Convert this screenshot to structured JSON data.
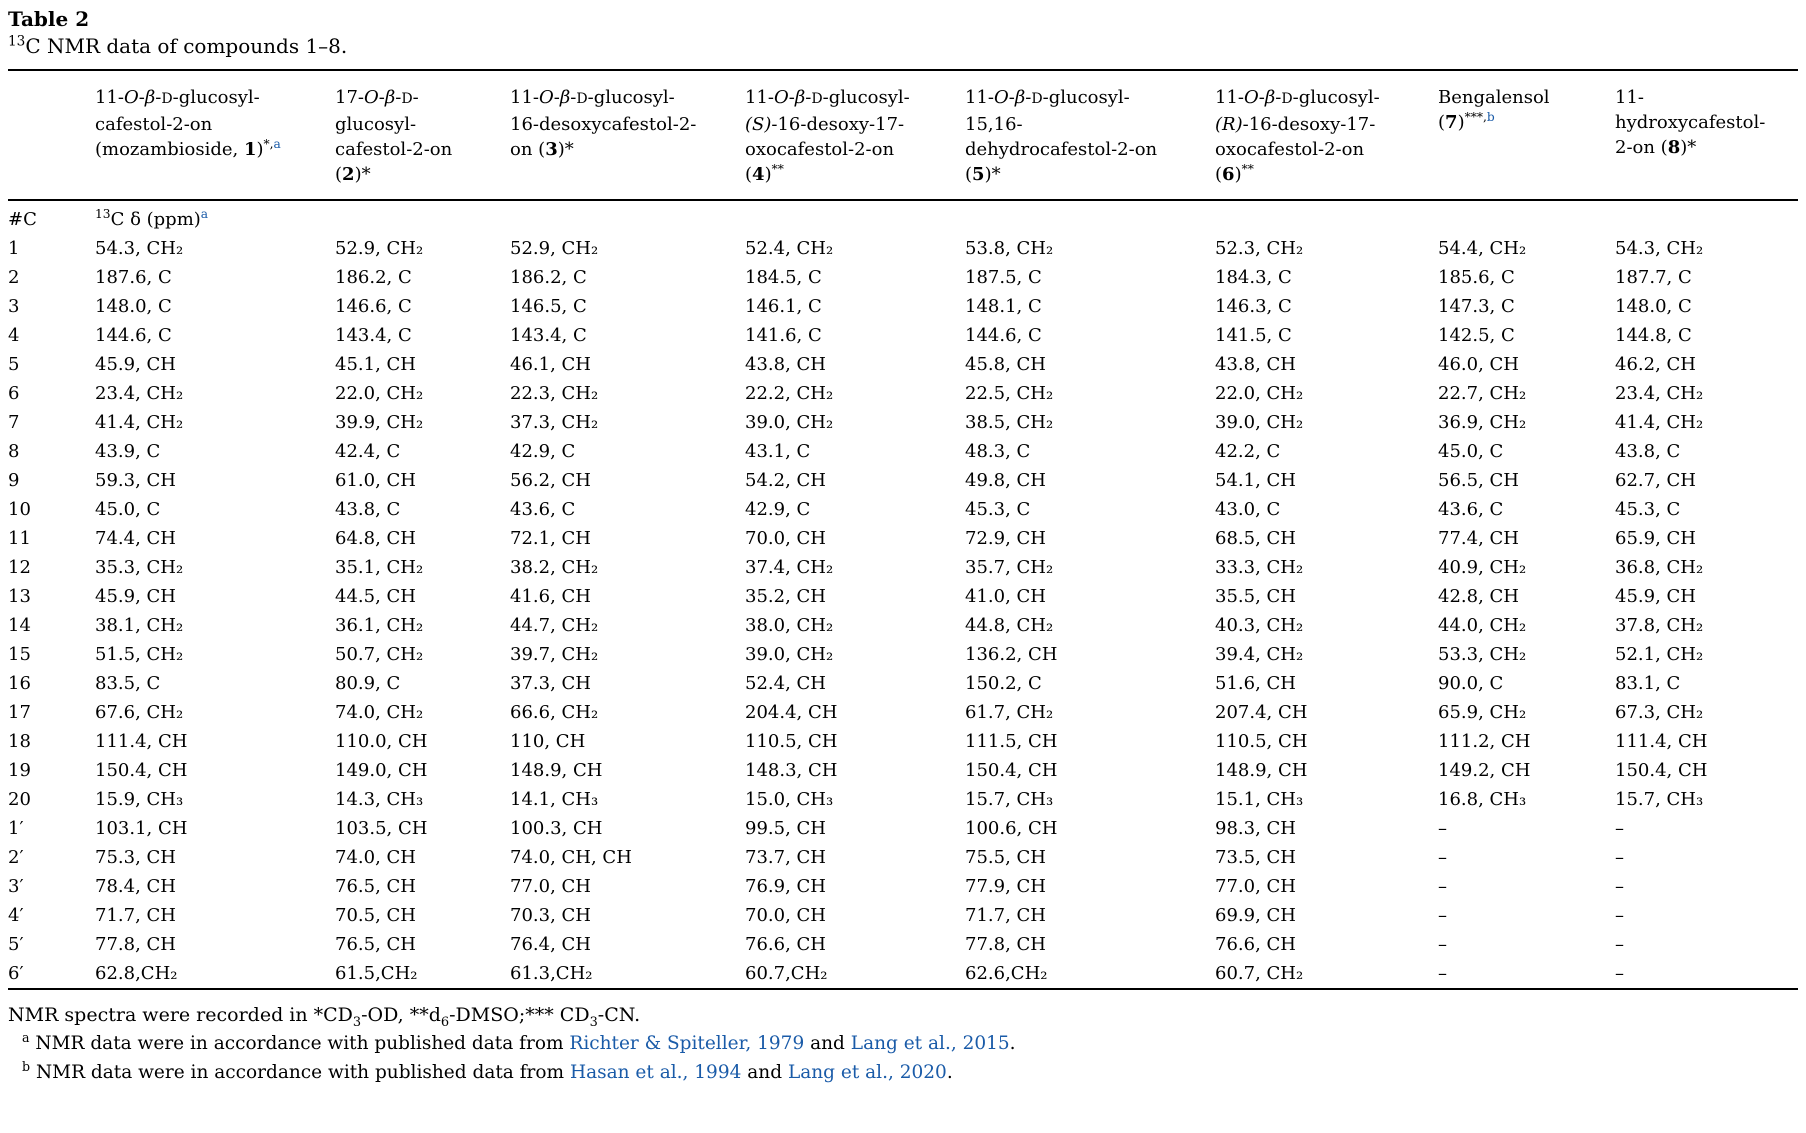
{
  "page": {
    "title": "Table 2",
    "caption": [
      {
        "t": "13",
        "sup": true
      },
      {
        "t": "C NMR data of compounds 1–8."
      }
    ]
  },
  "table": {
    "columns": [
      {
        "name": "compound-1",
        "header": [
          {
            "t": "11-"
          },
          {
            "t": "O",
            "i": true
          },
          {
            "t": "-"
          },
          {
            "t": "β",
            "i": true
          },
          {
            "t": "-"
          },
          {
            "t": "D",
            "sc": true
          },
          {
            "t": "-glucosyl-cafestol-2-on (mozambioside, "
          },
          {
            "t": "1",
            "b": true
          },
          {
            "t": ")"
          },
          {
            "t": "*,",
            "sup": true
          },
          {
            "t": "a",
            "sup": true,
            "link": true
          }
        ]
      },
      {
        "name": "compound-2",
        "header": [
          {
            "t": "17-"
          },
          {
            "t": "O",
            "i": true
          },
          {
            "t": "-"
          },
          {
            "t": "β",
            "i": true
          },
          {
            "t": "-"
          },
          {
            "t": "D",
            "sc": true
          },
          {
            "t": "-glucosyl-cafestol-2-on ("
          },
          {
            "t": "2",
            "b": true
          },
          {
            "t": ")*"
          }
        ]
      },
      {
        "name": "compound-3",
        "header": [
          {
            "t": "11-"
          },
          {
            "t": "O",
            "i": true
          },
          {
            "t": "-"
          },
          {
            "t": "β",
            "i": true
          },
          {
            "t": "-"
          },
          {
            "t": "D",
            "sc": true
          },
          {
            "t": "-glucosyl-16-desoxycafestol-2-on ("
          },
          {
            "t": "3",
            "b": true
          },
          {
            "t": ")*"
          }
        ]
      },
      {
        "name": "compound-4",
        "header": [
          {
            "t": "11-"
          },
          {
            "t": "O",
            "i": true
          },
          {
            "t": "-"
          },
          {
            "t": "β",
            "i": true
          },
          {
            "t": "-"
          },
          {
            "t": "D",
            "sc": true
          },
          {
            "t": "-glucosyl-"
          },
          {
            "t": "(S)",
            "i": true
          },
          {
            "t": "-16-desoxy-17-oxocafestol-2-on ("
          },
          {
            "t": "4",
            "b": true
          },
          {
            "t": ")"
          },
          {
            "t": "**",
            "sup": true
          }
        ]
      },
      {
        "name": "compound-5",
        "header": [
          {
            "t": "11-"
          },
          {
            "t": "O",
            "i": true
          },
          {
            "t": "-"
          },
          {
            "t": "β",
            "i": true
          },
          {
            "t": "-"
          },
          {
            "t": "D",
            "sc": true
          },
          {
            "t": "-glucosyl-15,16-dehydrocafestol-2-on ("
          },
          {
            "t": "5",
            "b": true
          },
          {
            "t": ")*"
          }
        ]
      },
      {
        "name": "compound-6",
        "header": [
          {
            "t": "11-"
          },
          {
            "t": "O",
            "i": true
          },
          {
            "t": "-"
          },
          {
            "t": "β",
            "i": true
          },
          {
            "t": "-"
          },
          {
            "t": "D",
            "sc": true
          },
          {
            "t": "-glucosyl-"
          },
          {
            "t": "(R)",
            "i": true
          },
          {
            "t": "-16-desoxy-17-oxocafestol-2-on ("
          },
          {
            "t": "6",
            "b": true
          },
          {
            "t": ")"
          },
          {
            "t": "**",
            "sup": true
          }
        ]
      },
      {
        "name": "compound-7",
        "header": [
          {
            "t": "Bengalensol ("
          },
          {
            "t": "7",
            "b": true
          },
          {
            "t": ")"
          },
          {
            "t": "***,",
            "sup": true
          },
          {
            "t": "b",
            "sup": true,
            "link": true
          }
        ]
      },
      {
        "name": "compound-8",
        "header": [
          {
            "t": "11-hydroxycafestol-2-on ("
          },
          {
            "t": "8",
            "b": true
          },
          {
            "t": ")*"
          }
        ]
      }
    ],
    "subheader": {
      "carbon_label": "#C",
      "unit": [
        {
          "t": "13",
          "sup": true
        },
        {
          "t": "C δ (ppm)"
        },
        {
          "t": "a",
          "sup": true,
          "link": true
        }
      ]
    },
    "rows": [
      {
        "label": "1",
        "cells": [
          "54.3, CH₂",
          "52.9, CH₂",
          "52.9, CH₂",
          "52.4, CH₂",
          "53.8, CH₂",
          "52.3, CH₂",
          "54.4, CH₂",
          "54.3, CH₂"
        ]
      },
      {
        "label": "2",
        "cells": [
          "187.6, C",
          "186.2, C",
          "186.2, C",
          "184.5, C",
          "187.5, C",
          "184.3, C",
          "185.6, C",
          "187.7, C"
        ]
      },
      {
        "label": "3",
        "cells": [
          "148.0, C",
          "146.6, C",
          "146.5, C",
          "146.1, C",
          "148.1, C",
          "146.3, C",
          "147.3, C",
          "148.0, C"
        ]
      },
      {
        "label": "4",
        "cells": [
          "144.6, C",
          "143.4, C",
          "143.4, C",
          "141.6, C",
          "144.6, C",
          "141.5, C",
          "142.5, C",
          "144.8, C"
        ]
      },
      {
        "label": "5",
        "cells": [
          "45.9, CH",
          "45.1, CH",
          "46.1, CH",
          "43.8, CH",
          "45.8, CH",
          "43.8, CH",
          "46.0, CH",
          "46.2, CH"
        ]
      },
      {
        "label": "6",
        "cells": [
          "23.4, CH₂",
          "22.0, CH₂",
          "22.3, CH₂",
          "22.2, CH₂",
          "22.5, CH₂",
          "22.0, CH₂",
          "22.7, CH₂",
          "23.4, CH₂"
        ]
      },
      {
        "label": "7",
        "cells": [
          "41.4, CH₂",
          "39.9, CH₂",
          "37.3, CH₂",
          "39.0, CH₂",
          "38.5, CH₂",
          "39.0, CH₂",
          "36.9, CH₂",
          "41.4, CH₂"
        ]
      },
      {
        "label": "8",
        "cells": [
          "43.9, C",
          "42.4, C",
          "42.9, C",
          "43.1, C",
          "48.3, C",
          "42.2, C",
          "45.0, C",
          "43.8, C"
        ]
      },
      {
        "label": "9",
        "cells": [
          "59.3, CH",
          "61.0, CH",
          "56.2, CH",
          "54.2, CH",
          "49.8, CH",
          "54.1, CH",
          "56.5, CH",
          "62.7, CH"
        ]
      },
      {
        "label": "10",
        "cells": [
          "45.0, C",
          "43.8, C",
          "43.6, C",
          "42.9, C",
          "45.3, C",
          "43.0, C",
          "43.6, C",
          "45.3, C"
        ]
      },
      {
        "label": "11",
        "cells": [
          "74.4, CH",
          "64.8, CH",
          "72.1, CH",
          "70.0, CH",
          "72.9, CH",
          "68.5, CH",
          "77.4, CH",
          "65.9, CH"
        ]
      },
      {
        "label": "12",
        "cells": [
          "35.3, CH₂",
          "35.1, CH₂",
          "38.2, CH₂",
          "37.4, CH₂",
          "35.7, CH₂",
          "33.3, CH₂",
          "40.9, CH₂",
          "36.8, CH₂"
        ]
      },
      {
        "label": "13",
        "cells": [
          "45.9, CH",
          "44.5, CH",
          "41.6, CH",
          "35.2, CH",
          "41.0, CH",
          "35.5, CH",
          "42.8, CH",
          "45.9, CH"
        ]
      },
      {
        "label": "14",
        "cells": [
          "38.1, CH₂",
          "36.1, CH₂",
          "44.7, CH₂",
          "38.0, CH₂",
          "44.8, CH₂",
          "40.3, CH₂",
          "44.0, CH₂",
          "37.8, CH₂"
        ]
      },
      {
        "label": "15",
        "cells": [
          "51.5, CH₂",
          "50.7, CH₂",
          "39.7, CH₂",
          "39.0, CH₂",
          "136.2, CH",
          "39.4, CH₂",
          "53.3, CH₂",
          "52.1, CH₂"
        ]
      },
      {
        "label": "16",
        "cells": [
          "83.5, C",
          "80.9, C",
          "37.3, CH",
          "52.4, CH",
          "150.2, C",
          "51.6, CH",
          "90.0, C",
          "83.1, C"
        ]
      },
      {
        "label": "17",
        "cells": [
          "67.6, CH₂",
          "74.0, CH₂",
          "66.6, CH₂",
          "204.4, CH",
          "61.7, CH₂",
          "207.4, CH",
          "65.9, CH₂",
          "67.3, CH₂"
        ]
      },
      {
        "label": "18",
        "cells": [
          "111.4, CH",
          "110.0, CH",
          "110, CH",
          "110.5, CH",
          "111.5, CH",
          "110.5, CH",
          "111.2, CH",
          "111.4, CH"
        ]
      },
      {
        "label": "19",
        "cells": [
          "150.4, CH",
          "149.0, CH",
          "148.9, CH",
          "148.3, CH",
          "150.4, CH",
          "148.9, CH",
          "149.2, CH",
          "150.4, CH"
        ]
      },
      {
        "label": "20",
        "cells": [
          "15.9, CH₃",
          "14.3, CH₃",
          "14.1, CH₃",
          "15.0, CH₃",
          "15.7, CH₃",
          "15.1, CH₃",
          "16.8, CH₃",
          "15.7, CH₃"
        ]
      },
      {
        "label": "1′",
        "cells": [
          "103.1, CH",
          "103.5, CH",
          "100.3, CH",
          "99.5, CH",
          "100.6, CH",
          "98.3, CH",
          "–",
          "–"
        ]
      },
      {
        "label": "2′",
        "cells": [
          "75.3, CH",
          "74.0, CH",
          "74.0, CH, CH",
          "73.7, CH",
          "75.5, CH",
          "73.5, CH",
          "–",
          "–"
        ]
      },
      {
        "label": "3′",
        "cells": [
          "78.4, CH",
          "76.5, CH",
          "77.0, CH",
          "76.9, CH",
          "77.9, CH",
          "77.0, CH",
          "–",
          "–"
        ]
      },
      {
        "label": "4′",
        "cells": [
          "71.7, CH",
          "70.5, CH",
          "70.3, CH",
          "70.0, CH",
          "71.7, CH",
          "69.9, CH",
          "–",
          "–"
        ]
      },
      {
        "label": "5′",
        "cells": [
          "77.8, CH",
          "76.5, CH",
          "76.4, CH",
          "76.6, CH",
          "77.8, CH",
          "76.6, CH",
          "–",
          "–"
        ]
      },
      {
        "label": "6′",
        "cells": [
          "62.8,CH₂",
          "61.5,CH₂",
          "61.3,CH₂",
          "60.7,CH₂",
          "62.6,CH₂",
          "60.7, CH₂",
          "–",
          "–"
        ]
      }
    ]
  },
  "footnotes": {
    "solvents": [
      {
        "t": "NMR spectra were recorded in *CD"
      },
      {
        "t": "3",
        "sub": true
      },
      {
        "t": "-OD, **d"
      },
      {
        "t": "6",
        "sub": true
      },
      {
        "t": "-DMSO;*** CD"
      },
      {
        "t": "3",
        "sub": true
      },
      {
        "t": "-CN."
      }
    ],
    "a": [
      {
        "t": "a",
        "sup": true
      },
      {
        "t": " NMR data were in accordance with published data from "
      },
      {
        "t": "Richter & Spiteller, 1979",
        "link": true
      },
      {
        "t": " and "
      },
      {
        "t": "Lang et al., 2015",
        "link": true
      },
      {
        "t": "."
      }
    ],
    "b": [
      {
        "t": "b",
        "sup": true
      },
      {
        "t": " NMR data were in accordance with published data from "
      },
      {
        "t": "Hasan et al., 1994",
        "link": true
      },
      {
        "t": " and "
      },
      {
        "t": "Lang et al., 2020",
        "link": true
      },
      {
        "t": "."
      }
    ]
  }
}
